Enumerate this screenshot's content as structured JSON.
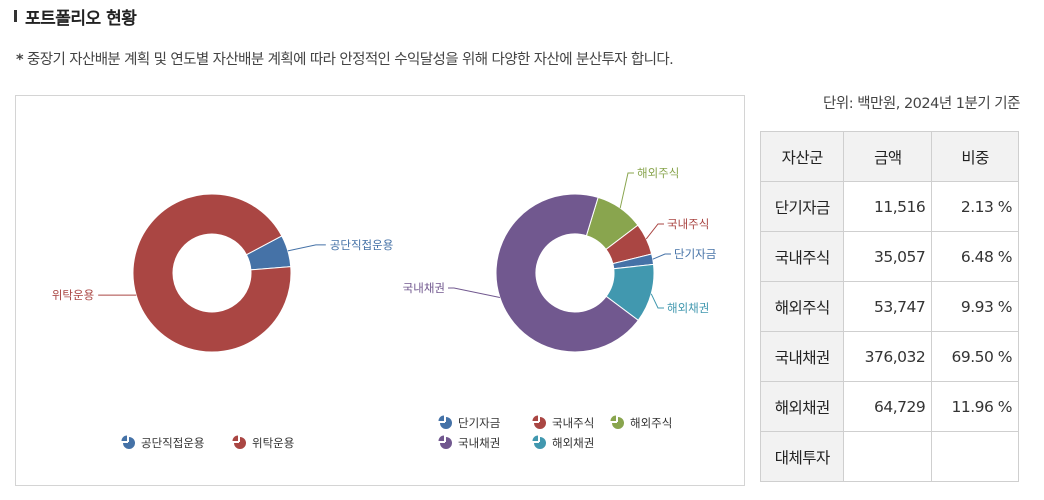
{
  "header": {
    "title": "포트폴리오 현황",
    "description_star": "*",
    "description": "중장기 자산배분 계획 및 연도별 자산배분 계획에 따라 안정적인 수익달성을 위해 다양한 자산에 분산투자 합니다."
  },
  "unit_label": "단위: 백만원, 2024년 1분기 기준",
  "table": {
    "headers": [
      "자산군",
      "금액",
      "비중"
    ],
    "rows": [
      {
        "name": "단기자금",
        "amount": "11,516",
        "ratio": "2.13 %"
      },
      {
        "name": "국내주식",
        "amount": "35,057",
        "ratio": "6.48 %"
      },
      {
        "name": "해외주식",
        "amount": "53,747",
        "ratio": "9.93 %"
      },
      {
        "name": "국내채권",
        "amount": "376,032",
        "ratio": "69.50 %"
      },
      {
        "name": "해외채권",
        "amount": "64,729",
        "ratio": "11.96 %"
      },
      {
        "name": "대체투자",
        "amount": "",
        "ratio": ""
      }
    ]
  },
  "chart_data": [
    {
      "type": "pie",
      "donut": true,
      "slices": [
        {
          "name": "공단직접운용",
          "value": 6.5,
          "color": "#4572a7"
        },
        {
          "name": "위탁운용",
          "value": 93.5,
          "color": "#aa4643"
        }
      ],
      "legend": [
        "공단직접운용",
        "위탁운용"
      ],
      "legend_placement": "bottom"
    },
    {
      "type": "pie",
      "donut": true,
      "slices": [
        {
          "name": "단기자금",
          "value": 2.13,
          "color": "#4572a7"
        },
        {
          "name": "국내주식",
          "value": 6.48,
          "color": "#aa4643"
        },
        {
          "name": "해외주식",
          "value": 9.93,
          "color": "#89a54e"
        },
        {
          "name": "국내채권",
          "value": 69.5,
          "color": "#71588f"
        },
        {
          "name": "해외채권",
          "value": 11.96,
          "color": "#4198af"
        }
      ],
      "legend": [
        "단기자금",
        "국내주식",
        "해외주식",
        "국내채권",
        "해외채권"
      ],
      "legend_placement": "bottom"
    }
  ]
}
